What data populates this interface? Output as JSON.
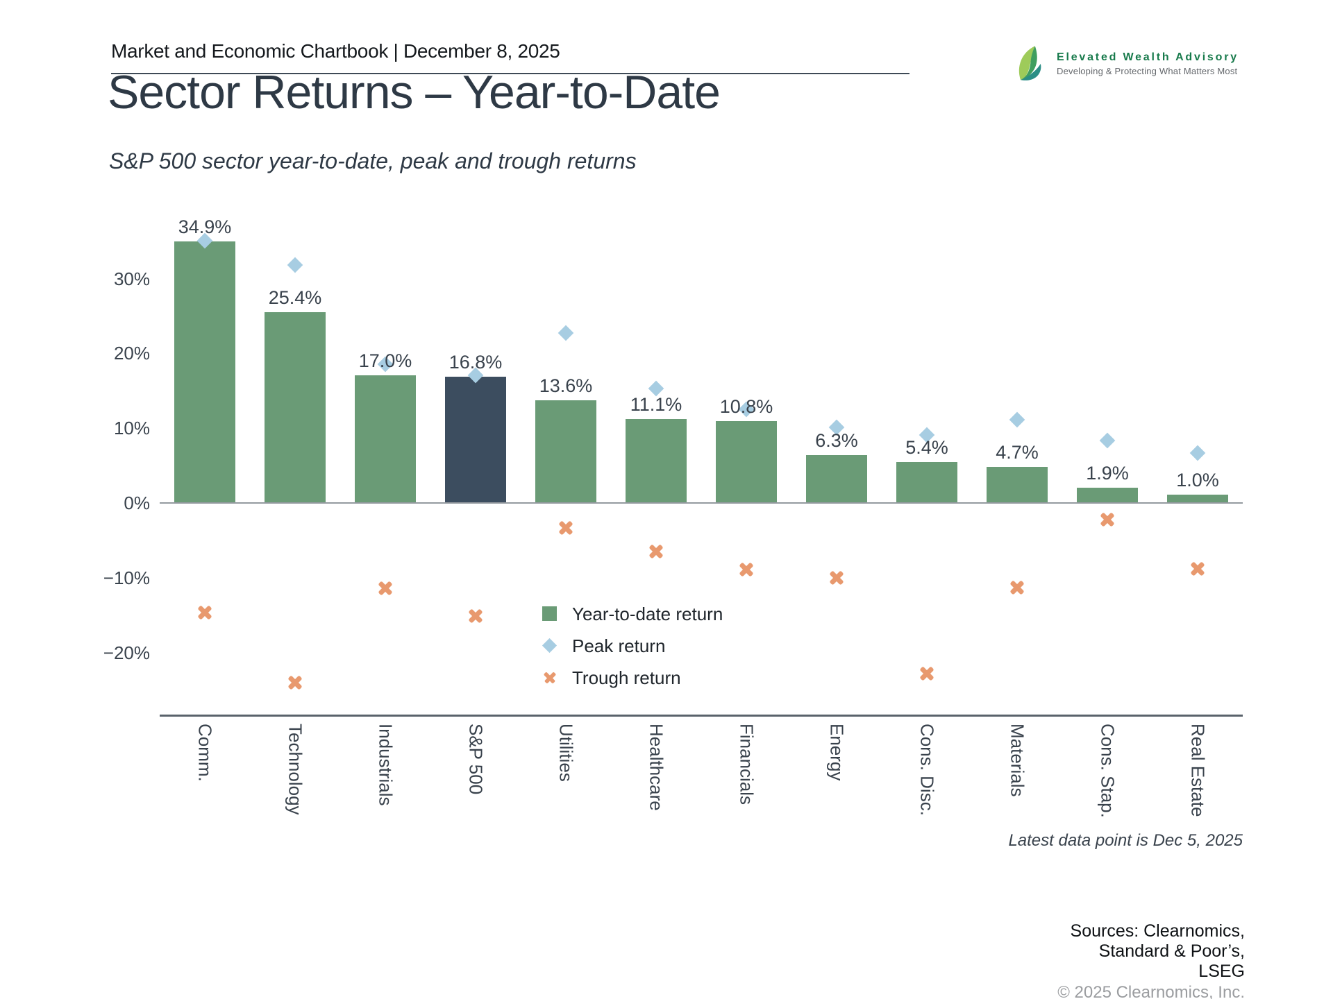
{
  "header": {
    "chartbook_title": "Market and Economic Chartbook | December 8, 2025"
  },
  "logo": {
    "name": "Elevated Wealth Advisory",
    "tagline": "Developing & Protecting What Matters Most"
  },
  "title": "Sector Returns – Year-to-Date",
  "subtitle": "S&P 500 sector year-to-date, peak and trough returns",
  "chart_data": {
    "type": "bar",
    "categories": [
      "Comm.",
      "Technology",
      "Industrials",
      "S&P 500",
      "Utilities",
      "Healthcare",
      "Financials",
      "Energy",
      "Cons. Disc.",
      "Materials",
      "Cons. Stap.",
      "Real Estate"
    ],
    "series": [
      {
        "name": "Year-to-date return",
        "marker": "square",
        "values": [
          34.9,
          25.4,
          17.0,
          16.8,
          13.6,
          11.1,
          10.8,
          6.3,
          5.4,
          4.7,
          1.9,
          1.0
        ]
      },
      {
        "name": "Peak return",
        "marker": "diamond",
        "values": [
          35.0,
          31.8,
          18.5,
          17.0,
          22.7,
          15.2,
          12.4,
          10.0,
          9.0,
          11.0,
          8.2,
          6.6
        ]
      },
      {
        "name": "Trough return",
        "marker": "x",
        "values": [
          -14.8,
          -24.2,
          -11.6,
          -15.3,
          -3.5,
          -6.6,
          -9.1,
          -10.2,
          -23.0,
          -11.5,
          -2.4,
          -9.0
        ]
      }
    ],
    "bar_labels": [
      "34.9%",
      "25.4%",
      "17.0%",
      "16.8%",
      "13.6%",
      "11.1%",
      "10.8%",
      "6.3%",
      "5.4%",
      "4.7%",
      "1.9%",
      "1.0%"
    ],
    "highlight_category": "S&P 500",
    "y_ticks": [
      {
        "value": 30,
        "label": "30%"
      },
      {
        "value": 20,
        "label": "20%"
      },
      {
        "value": 10,
        "label": "10%"
      },
      {
        "value": 0,
        "label": "0%"
      },
      {
        "value": -10,
        "label": "−10%"
      },
      {
        "value": -20,
        "label": "−20%"
      }
    ],
    "ylim": [
      -28.5,
      42
    ],
    "grid": false,
    "legend_position": "inside-lower-center-left",
    "colors": {
      "bar": "#6a9b76",
      "bar_highlight": "#3c4d5f",
      "peak": "#a7cde2",
      "trough": "#e8996e"
    }
  },
  "footnote": "Latest data point is Dec 5, 2025",
  "sources": {
    "lines": [
      "Sources: Clearnomics,",
      "Standard & Poor’s,",
      "LSEG"
    ],
    "copyright": "© 2025 Clearnomics, Inc."
  }
}
